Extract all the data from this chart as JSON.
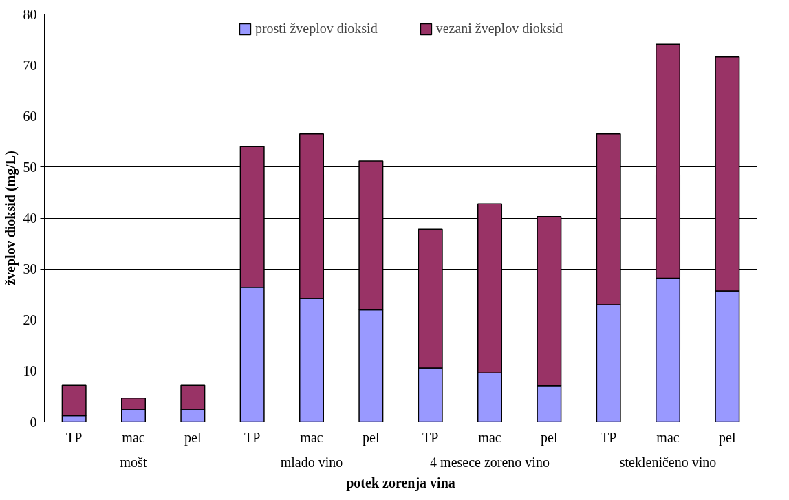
{
  "chart_data": {
    "type": "bar",
    "stacked": true,
    "xlabel": "potek zorenja vina",
    "ylabel": "žveplov dioksid (mg/L)",
    "categories": [
      "TP",
      "mac",
      "pel",
      "TP",
      "mac",
      "pel",
      "TP",
      "mac",
      "pel",
      "TP",
      "mac",
      "pel"
    ],
    "annotations": [
      "mošt",
      "mlado vino",
      "4 mesece zoreno vino",
      "stekleničeno vino"
    ],
    "series": [
      {
        "name": "prosti žveplov dioksid",
        "color": "#9999ff",
        "values": [
          1.2,
          2.5,
          2.5,
          26.4,
          24.2,
          22.0,
          10.6,
          9.6,
          7.1,
          23.0,
          28.2,
          25.7
        ]
      },
      {
        "name": "vezani žveplov dioksid",
        "color": "#993366",
        "values": [
          6.0,
          2.2,
          4.7,
          27.6,
          32.3,
          29.2,
          27.2,
          33.2,
          33.2,
          33.5,
          45.9,
          45.9
        ]
      }
    ],
    "ylim": [
      0,
      80
    ],
    "yticks": [
      0,
      10,
      20,
      30,
      40,
      50,
      60,
      70,
      80
    ],
    "grid": "y",
    "legend": "top"
  }
}
